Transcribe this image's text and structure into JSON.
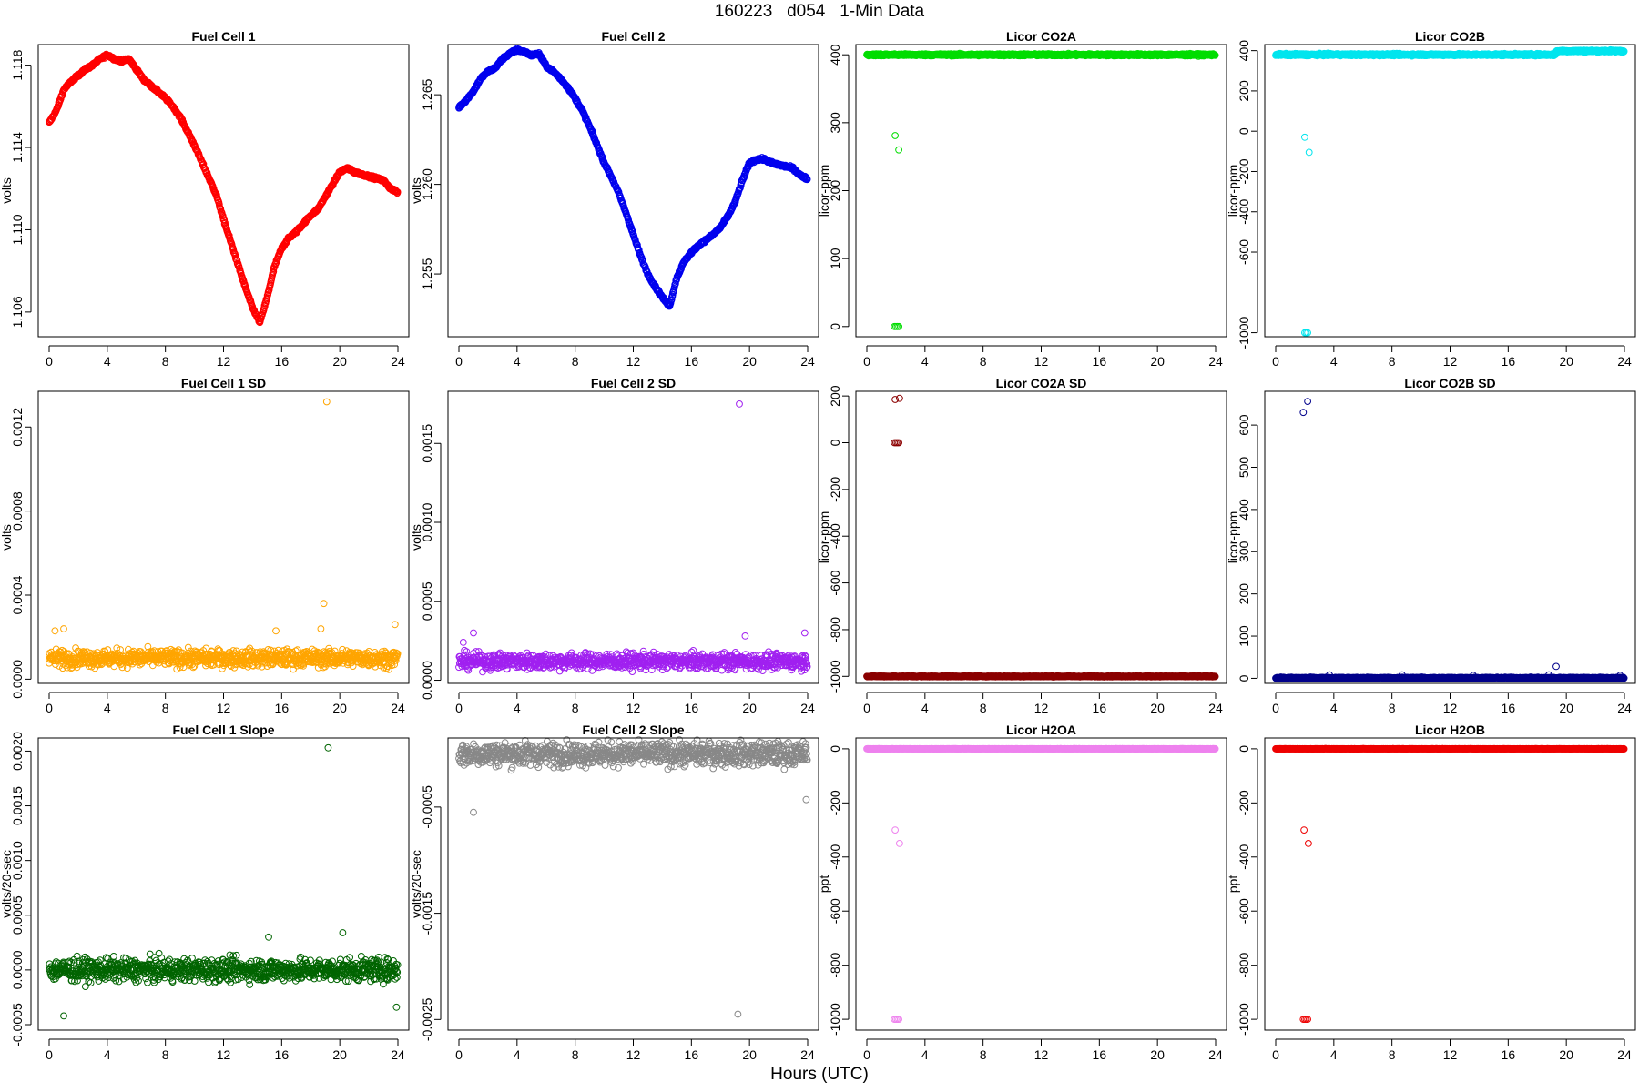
{
  "figure": {
    "title": "160223   d054   1-Min Data",
    "xlabel": "Hours (UTC)"
  },
  "chart_data": [
    {
      "type": "scatter",
      "title": "Fuel Cell 1",
      "xlabel": "",
      "ylabel": "volts",
      "xlim": [
        0,
        24
      ],
      "ylim": [
        1.1048,
        1.119
      ],
      "xticks": [
        0,
        4,
        8,
        12,
        16,
        20,
        24
      ],
      "yticks": [
        1.106,
        1.11,
        1.114,
        1.118
      ],
      "ytick_labels": [
        "1.106",
        "1.110",
        "1.114",
        "1.118"
      ],
      "color": "#ff0000",
      "marker": "open-circle",
      "series": [
        {
          "x": [
            0,
            0.5,
            1,
            1.5,
            2,
            2.5,
            3,
            3.5,
            4,
            4.5,
            5,
            5.5,
            6,
            6.5,
            7,
            7.5,
            8,
            8.5,
            9,
            9.5,
            10,
            10.5,
            11,
            11.5,
            12,
            12.5,
            13,
            13.5,
            14,
            14.5,
            15,
            15.5,
            16,
            16.5,
            17,
            17.5,
            18,
            18.5,
            19,
            19.5,
            20,
            20.5,
            21,
            21.5,
            22,
            22.5,
            23,
            23.5,
            24
          ],
          "y": [
            1.1152,
            1.1158,
            1.1168,
            1.1172,
            1.1175,
            1.1178,
            1.118,
            1.1183,
            1.1185,
            1.1183,
            1.1182,
            1.1183,
            1.1178,
            1.1173,
            1.117,
            1.1167,
            1.1164,
            1.116,
            1.1155,
            1.1148,
            1.1141,
            1.1133,
            1.1125,
            1.1117,
            1.1105,
            1.1094,
            1.1083,
            1.1072,
            1.1062,
            1.1055,
            1.1067,
            1.1082,
            1.1091,
            1.1096,
            1.1099,
            1.1103,
            1.1107,
            1.111,
            1.1116,
            1.1122,
            1.1128,
            1.113,
            1.1128,
            1.1127,
            1.1126,
            1.1125,
            1.1124,
            1.112,
            1.1118
          ]
        }
      ]
    },
    {
      "type": "scatter",
      "title": "Fuel Cell 2",
      "xlabel": "",
      "ylabel": "volts",
      "xlim": [
        0,
        24
      ],
      "ylim": [
        1.2515,
        1.2678
      ],
      "xticks": [
        0,
        4,
        8,
        12,
        16,
        20,
        24
      ],
      "yticks": [
        1.255,
        1.26,
        1.265
      ],
      "ytick_labels": [
        "1.255",
        "1.260",
        "1.265"
      ],
      "color": "#0000ee",
      "marker": "open-circle",
      "series": [
        {
          "x": [
            0,
            0.5,
            1,
            1.5,
            2,
            2.5,
            3,
            3.5,
            4,
            4.5,
            5,
            5.5,
            6,
            6.5,
            7,
            7.5,
            8,
            8.5,
            9,
            9.5,
            10,
            10.5,
            11,
            11.5,
            12,
            12.5,
            13,
            13.5,
            14,
            14.5,
            15,
            15.5,
            16,
            16.5,
            17,
            17.5,
            18,
            18.5,
            19,
            19.5,
            20,
            20.5,
            21,
            21.5,
            22,
            22.5,
            23,
            23.5,
            24
          ],
          "y": [
            1.2643,
            1.2647,
            1.2652,
            1.2659,
            1.2663,
            1.2665,
            1.267,
            1.2673,
            1.2675,
            1.2674,
            1.2672,
            1.2673,
            1.2666,
            1.2663,
            1.2659,
            1.2654,
            1.2648,
            1.2641,
            1.2632,
            1.2622,
            1.2612,
            1.2604,
            1.2595,
            1.2584,
            1.2572,
            1.256,
            1.255,
            1.2543,
            1.2537,
            1.2532,
            1.2548,
            1.2557,
            1.2562,
            1.2566,
            1.2569,
            1.2572,
            1.2576,
            1.2582,
            1.259,
            1.2602,
            1.2612,
            1.2614,
            1.2614,
            1.2612,
            1.2611,
            1.261,
            1.2609,
            1.2605,
            1.2603
          ]
        }
      ]
    },
    {
      "type": "scatter",
      "title": "Licor CO2A",
      "xlabel": "",
      "ylabel": "licor-ppm",
      "xlim": [
        0,
        24
      ],
      "ylim": [
        -15,
        415
      ],
      "xticks": [
        0,
        4,
        8,
        12,
        16,
        20,
        24
      ],
      "yticks": [
        0,
        100,
        200,
        300,
        400
      ],
      "ytick_labels": [
        "0",
        "100",
        "200",
        "300",
        "400"
      ],
      "color": "#00dd00",
      "marker": "open-circle",
      "series": [
        {
          "x_range": [
            0,
            24
          ],
          "y_level": 400,
          "y_jitter": 1.5,
          "outliers": [
            {
              "x": 1.95,
              "y": 281
            },
            {
              "x": 2.2,
              "y": 260
            },
            {
              "x": 1.9,
              "y": 0
            },
            {
              "x": 2.0,
              "y": 0
            },
            {
              "x": 2.1,
              "y": 0
            },
            {
              "x": 2.2,
              "y": 0
            }
          ]
        }
      ]
    },
    {
      "type": "scatter",
      "title": "Licor CO2B",
      "xlabel": "",
      "ylabel": "licor-ppm",
      "xlim": [
        0,
        24
      ],
      "ylim": [
        -1020,
        430
      ],
      "xticks": [
        0,
        4,
        8,
        12,
        16,
        20,
        24
      ],
      "yticks": [
        -1000,
        -600,
        -400,
        -200,
        0,
        200,
        400
      ],
      "ytick_labels": [
        "-1000",
        "-600",
        "-400",
        "-200",
        "0",
        "200",
        "400"
      ],
      "color": "#00e5ee",
      "marker": "open-circle",
      "series": [
        {
          "segments": [
            {
              "x": [
                0,
                19.3
              ],
              "y": 380
            },
            {
              "x": 19.3,
              "x_end": 24,
              "y": 398
            }
          ],
          "x_range": [
            0,
            24
          ],
          "y_jitter": 5,
          "outliers": [
            {
              "x": 2.0,
              "y": -30
            },
            {
              "x": 2.3,
              "y": -105
            },
            {
              "x": 2.0,
              "y": -1000
            },
            {
              "x": 2.1,
              "y": -1000
            },
            {
              "x": 2.2,
              "y": -1000
            }
          ]
        }
      ]
    },
    {
      "type": "scatter",
      "title": "Fuel Cell 1 SD",
      "xlabel": "",
      "ylabel": "volts",
      "xlim": [
        0,
        24
      ],
      "ylim": [
        -2e-05,
        0.00137
      ],
      "xticks": [
        0,
        4,
        8,
        12,
        16,
        20,
        24
      ],
      "yticks": [
        0,
        0.0004,
        0.0008,
        0.0012
      ],
      "ytick_labels": [
        "0.0000",
        "0.0004",
        "0.0008",
        "0.0012"
      ],
      "color": "#ffa500",
      "marker": "open-circle",
      "series": [
        {
          "x_range": [
            0,
            24
          ],
          "y_level": 0.0001,
          "y_jitter": 4e-05,
          "outliers": [
            {
              "x": 19.1,
              "y": 0.00132
            },
            {
              "x": 18.9,
              "y": 0.00036
            },
            {
              "x": 18.7,
              "y": 0.00024
            },
            {
              "x": 15.6,
              "y": 0.00023
            },
            {
              "x": 0.4,
              "y": 0.00023
            },
            {
              "x": 1.0,
              "y": 0.00024
            },
            {
              "x": 23.8,
              "y": 0.00026
            }
          ]
        }
      ]
    },
    {
      "type": "scatter",
      "title": "Fuel Cell 2 SD",
      "xlabel": "",
      "ylabel": "volts",
      "xlim": [
        0,
        24
      ],
      "ylim": [
        -2e-05,
        0.00183
      ],
      "xticks": [
        0,
        4,
        8,
        12,
        16,
        20,
        24
      ],
      "yticks": [
        0,
        0.0005,
        0.001,
        0.0015
      ],
      "ytick_labels": [
        "0.0000",
        "0.0005",
        "0.0010",
        "0.0015"
      ],
      "color": "#a020f0",
      "marker": "open-circle",
      "series": [
        {
          "x_range": [
            0,
            24
          ],
          "y_level": 0.00012,
          "y_jitter": 5e-05,
          "outliers": [
            {
              "x": 19.3,
              "y": 0.00175
            },
            {
              "x": 19.7,
              "y": 0.00028
            },
            {
              "x": 1.0,
              "y": 0.0003
            },
            {
              "x": 0.3,
              "y": 0.00024
            },
            {
              "x": 23.8,
              "y": 0.0003
            }
          ]
        }
      ]
    },
    {
      "type": "scatter",
      "title": "Licor CO2A SD",
      "xlabel": "",
      "ylabel": "licor-ppm",
      "xlim": [
        0,
        24
      ],
      "ylim": [
        -1030,
        220
      ],
      "xticks": [
        0,
        4,
        8,
        12,
        16,
        20,
        24
      ],
      "yticks": [
        -1000,
        -800,
        -600,
        -400,
        -200,
        0,
        200
      ],
      "ytick_labels": [
        "-1000",
        "-800",
        "-600",
        "-400",
        "-200",
        "0",
        "200"
      ],
      "color": "#8b0000",
      "marker": "open-circle",
      "series": [
        {
          "x_range": [
            0,
            24
          ],
          "y_level": -1000,
          "y_jitter": 2,
          "outliers": [
            {
              "x": 1.95,
              "y": 185
            },
            {
              "x": 2.25,
              "y": 190
            },
            {
              "x": 1.9,
              "y": 0
            },
            {
              "x": 2.0,
              "y": 0
            },
            {
              "x": 2.1,
              "y": 0
            },
            {
              "x": 2.2,
              "y": 0
            }
          ]
        }
      ]
    },
    {
      "type": "scatter",
      "title": "Licor CO2B SD",
      "xlabel": "",
      "ylabel": "licor-ppm",
      "xlim": [
        0,
        24
      ],
      "ylim": [
        -12,
        680
      ],
      "xticks": [
        0,
        4,
        8,
        12,
        16,
        20,
        24
      ],
      "yticks": [
        0,
        100,
        200,
        300,
        400,
        500,
        600
      ],
      "ytick_labels": [
        "0",
        "100",
        "200",
        "300",
        "400",
        "500",
        "600"
      ],
      "color": "#00008b",
      "marker": "open-circle",
      "series": [
        {
          "x_range": [
            0,
            24
          ],
          "y_level": 1,
          "y_jitter": 1.5,
          "outliers": [
            {
              "x": 1.9,
              "y": 630
            },
            {
              "x": 2.2,
              "y": 656
            },
            {
              "x": 19.3,
              "y": 28
            },
            {
              "x": 3.7,
              "y": 8
            },
            {
              "x": 8.7,
              "y": 8
            },
            {
              "x": 13.6,
              "y": 7
            },
            {
              "x": 18.8,
              "y": 8
            },
            {
              "x": 23.7,
              "y": 7
            }
          ]
        }
      ]
    },
    {
      "type": "scatter",
      "title": "Fuel Cell 1 Slope",
      "xlabel": "",
      "ylabel": "volts/20-sec",
      "xlim": [
        0,
        24
      ],
      "ylim": [
        -0.00055,
        0.00212
      ],
      "xticks": [
        0,
        4,
        8,
        12,
        16,
        20,
        24
      ],
      "yticks": [
        -0.0005,
        0,
        0.0005,
        0.001,
        0.0015,
        0.002
      ],
      "ytick_labels": [
        "-0.0005",
        "0.0000",
        "0.0005",
        "0.0010",
        "0.0015",
        "0.0020"
      ],
      "color": "#006400",
      "marker": "open-circle",
      "series": [
        {
          "x_range": [
            0,
            24
          ],
          "y_level": 0,
          "y_jitter": 0.0001,
          "outliers": [
            {
              "x": 19.2,
              "y": 0.00203
            },
            {
              "x": 1.0,
              "y": -0.00042
            },
            {
              "x": 20.2,
              "y": 0.00034
            },
            {
              "x": 15.1,
              "y": 0.0003
            },
            {
              "x": 23.9,
              "y": -0.00034
            }
          ]
        }
      ]
    },
    {
      "type": "scatter",
      "title": "Fuel Cell 2 Slope",
      "xlabel": "",
      "ylabel": "volts/20-sec",
      "xlim": [
        0,
        24
      ],
      "ylim": [
        -0.0026,
        0.00015
      ],
      "xticks": [
        0,
        4,
        8,
        12,
        16,
        20,
        24
      ],
      "yticks": [
        -0.0025,
        -0.0015,
        -0.0005
      ],
      "ytick_labels": [
        "-0.0025",
        "-0.0015",
        "-0.0005"
      ],
      "color": "#888888",
      "marker": "open-circle",
      "series": [
        {
          "x_range": [
            0,
            24
          ],
          "y_level": 0,
          "y_jitter": 0.00011,
          "outliers": [
            {
              "x": 19.2,
              "y": -0.00245
            },
            {
              "x": 19.7,
              "y": 5e-05
            },
            {
              "x": 1.0,
              "y": -0.00055
            },
            {
              "x": 23.9,
              "y": -0.00043
            },
            {
              "x": 17.9,
              "y": 0.0001
            }
          ]
        }
      ]
    },
    {
      "type": "scatter",
      "title": "Licor H2OA",
      "xlabel": "",
      "ylabel": "ppt",
      "xlim": [
        0,
        24
      ],
      "ylim": [
        -1040,
        40
      ],
      "xticks": [
        0,
        4,
        8,
        12,
        16,
        20,
        24
      ],
      "yticks": [
        -1000,
        -800,
        -600,
        -400,
        -200,
        0
      ],
      "ytick_labels": [
        "-1000",
        "-800",
        "-600",
        "-400",
        "-200",
        "0"
      ],
      "color": "#ee82ee",
      "marker": "open-circle",
      "series": [
        {
          "x_range": [
            0,
            24
          ],
          "y_level": 0,
          "y_jitter": 0.5,
          "outliers": [
            {
              "x": 1.95,
              "y": -300
            },
            {
              "x": 2.25,
              "y": -350
            },
            {
              "x": 1.9,
              "y": -1000
            },
            {
              "x": 2.0,
              "y": -1000
            },
            {
              "x": 2.1,
              "y": -1000
            },
            {
              "x": 2.2,
              "y": -1000
            }
          ]
        }
      ]
    },
    {
      "type": "scatter",
      "title": "Licor H2OB",
      "xlabel": "",
      "ylabel": "ppt",
      "xlim": [
        0,
        24
      ],
      "ylim": [
        -1040,
        40
      ],
      "xticks": [
        0,
        4,
        8,
        12,
        16,
        20,
        24
      ],
      "yticks": [
        -1000,
        -800,
        -600,
        -400,
        -200,
        0
      ],
      "ytick_labels": [
        "-1000",
        "-800",
        "-600",
        "-400",
        "-200",
        "0"
      ],
      "color": "#ee0000",
      "marker": "open-circle",
      "series": [
        {
          "x_range": [
            0,
            24
          ],
          "y_level": 0,
          "y_jitter": 0.5,
          "outliers": [
            {
              "x": 1.95,
              "y": -300
            },
            {
              "x": 2.25,
              "y": -350
            },
            {
              "x": 1.9,
              "y": -1000
            },
            {
              "x": 2.0,
              "y": -1000
            },
            {
              "x": 2.1,
              "y": -1000
            },
            {
              "x": 2.2,
              "y": -1000
            }
          ]
        }
      ]
    }
  ]
}
